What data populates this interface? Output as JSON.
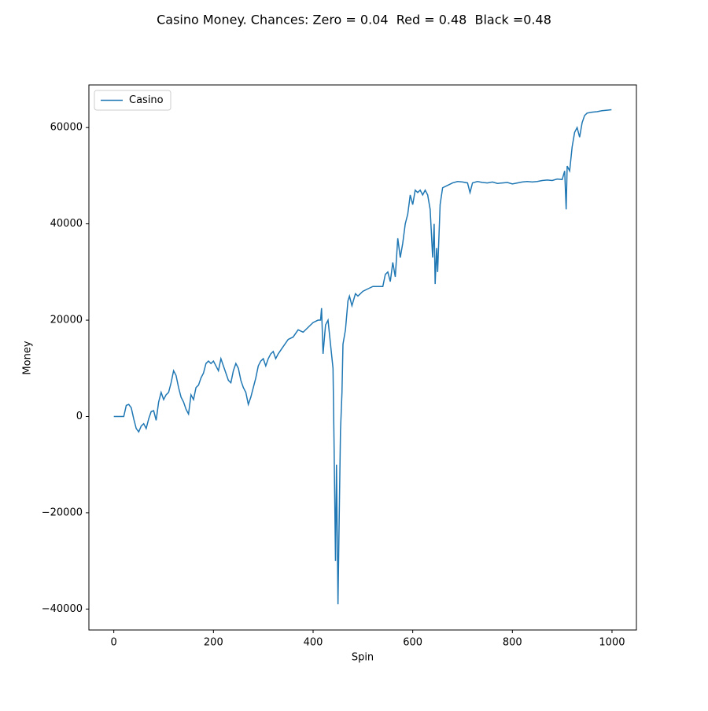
{
  "chart_data": {
    "type": "line",
    "title": "Casino Money. Chances: Zero = 0.04  Red = 0.48  Black =0.48",
    "x_label": "Spin",
    "y_label": "Money",
    "x": [
      0,
      15,
      20,
      25,
      30,
      35,
      40,
      45,
      50,
      55,
      60,
      65,
      70,
      75,
      80,
      85,
      90,
      95,
      100,
      105,
      110,
      115,
      120,
      125,
      130,
      135,
      140,
      145,
      150,
      155,
      160,
      165,
      170,
      175,
      180,
      185,
      190,
      195,
      200,
      205,
      210,
      215,
      220,
      225,
      230,
      235,
      240,
      245,
      250,
      255,
      260,
      265,
      270,
      275,
      280,
      285,
      290,
      295,
      300,
      305,
      310,
      315,
      320,
      325,
      330,
      340,
      350,
      360,
      370,
      380,
      390,
      400,
      410,
      415,
      417,
      420,
      425,
      430,
      435,
      440,
      442,
      445,
      447,
      450,
      453,
      455,
      458,
      460,
      465,
      470,
      473,
      478,
      485,
      490,
      500,
      510,
      520,
      530,
      540,
      545,
      550,
      555,
      560,
      565,
      570,
      575,
      580,
      585,
      590,
      595,
      600,
      605,
      610,
      615,
      620,
      625,
      630,
      635,
      640,
      643,
      645,
      648,
      650,
      655,
      660,
      670,
      680,
      690,
      700,
      710,
      715,
      720,
      730,
      740,
      750,
      760,
      770,
      780,
      790,
      800,
      810,
      820,
      830,
      840,
      850,
      860,
      870,
      880,
      890,
      900,
      905,
      908,
      910,
      915,
      920,
      925,
      930,
      935,
      940,
      945,
      950,
      960,
      970,
      980,
      990,
      999
    ],
    "series": [
      {
        "name": "Casino",
        "color": "#1f77b4",
        "values": [
          0,
          0,
          0,
          2300,
          2500,
          1800,
          -500,
          -2500,
          -3200,
          -2000,
          -1500,
          -2500,
          -500,
          1000,
          1200,
          -800,
          3000,
          5000,
          3500,
          4500,
          5000,
          7000,
          9500,
          8500,
          6000,
          4000,
          3000,
          1500,
          500,
          4500,
          3500,
          6000,
          6500,
          8000,
          9000,
          11000,
          11500,
          11000,
          11500,
          10500,
          9500,
          12000,
          10500,
          9000,
          7500,
          7000,
          9500,
          11000,
          10000,
          7500,
          6000,
          5000,
          2500,
          4000,
          6000,
          8000,
          10500,
          11500,
          12000,
          10500,
          12000,
          13000,
          13500,
          12000,
          13000,
          14500,
          16000,
          16500,
          18000,
          17500,
          18500,
          19500,
          20000,
          20000,
          22500,
          13000,
          19000,
          20000,
          15000,
          10000,
          -5000,
          -30000,
          -10000,
          -39000,
          -17000,
          -3000,
          5000,
          15000,
          18000,
          24000,
          25000,
          23000,
          25500,
          25000,
          26000,
          26500,
          27000,
          27000,
          27000,
          29500,
          30000,
          28000,
          32000,
          29000,
          37000,
          33000,
          36000,
          40000,
          42000,
          46000,
          44000,
          47000,
          46500,
          47000,
          46000,
          47000,
          46000,
          43000,
          33000,
          40000,
          27500,
          35000,
          30000,
          44000,
          47500,
          48000,
          48500,
          48800,
          48700,
          48500,
          46500,
          48500,
          48800,
          48600,
          48500,
          48700,
          48400,
          48500,
          48600,
          48300,
          48500,
          48700,
          48800,
          48700,
          48800,
          49000,
          49100,
          49000,
          49300,
          49200,
          51000,
          43000,
          52000,
          51000,
          56000,
          59000,
          60000,
          58000,
          61000,
          62500,
          63000,
          63200,
          63300,
          63500,
          63600,
          63700
        ]
      }
    ],
    "xlim": [
      -50,
      1049
    ],
    "ylim": [
      -44350,
      68850
    ],
    "xticks": [
      0,
      200,
      400,
      600,
      800,
      1000
    ],
    "yticks": [
      {
        "value": -40000,
        "label": "−40000"
      },
      {
        "value": -20000,
        "label": "−20000"
      },
      0,
      20000,
      40000,
      60000
    ],
    "legend": "upper left"
  }
}
